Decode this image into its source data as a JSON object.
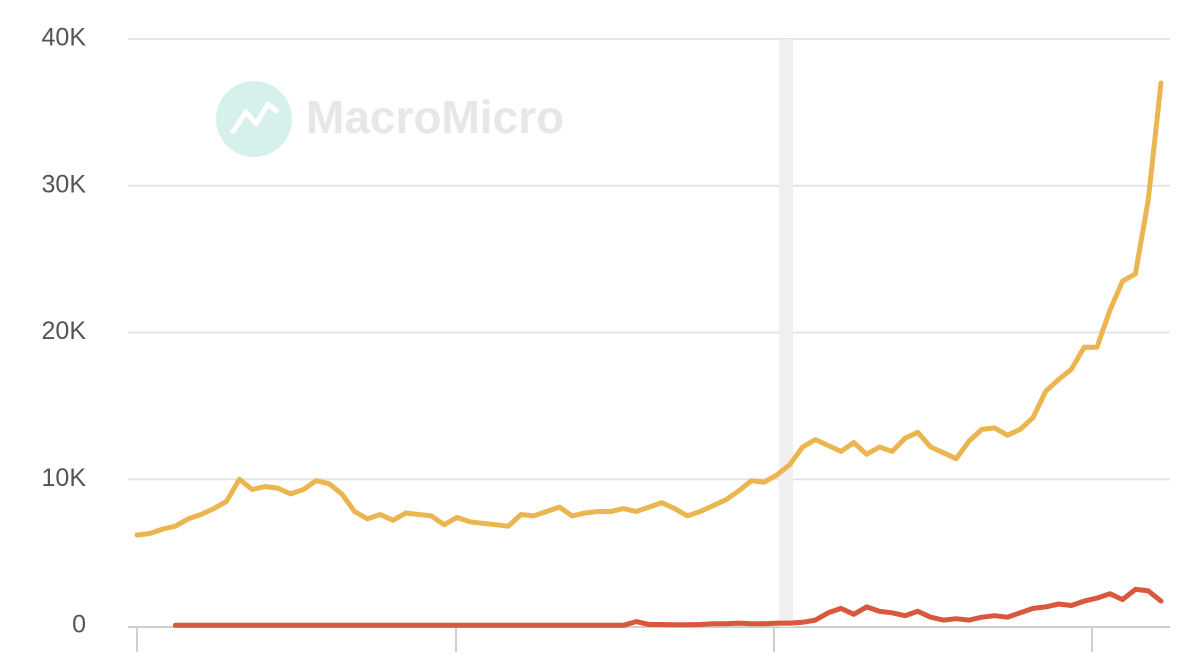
{
  "chart_data": {
    "type": "line",
    "watermark": "MacroMicro",
    "categories": [
      null,
      null,
      null,
      null,
      null,
      null,
      null,
      null,
      null,
      null,
      null,
      null,
      null,
      null,
      null,
      null,
      null,
      null,
      null,
      null,
      null,
      null,
      null,
      null,
      null,
      null,
      null,
      null,
      null,
      null,
      null,
      null,
      null,
      null,
      null,
      null,
      null,
      null,
      null,
      null,
      null,
      null,
      null,
      null,
      null,
      null,
      null,
      null,
      null,
      null,
      null,
      null,
      null,
      null,
      null,
      null,
      null,
      null,
      null,
      null,
      null,
      null,
      null,
      null,
      null,
      null,
      null,
      null,
      null,
      null,
      null,
      null,
      null,
      null,
      null,
      null,
      null,
      null,
      null,
      null,
      null
    ],
    "series": [
      {
        "color": "#ebb550",
        "values": [
          6200,
          6300,
          6600,
          6800,
          7300,
          7600,
          8000,
          8500,
          10000,
          9300,
          9500,
          9400,
          9000,
          9300,
          9900,
          9700,
          9000,
          7800,
          7300,
          7600,
          7200,
          7700,
          7600,
          7500,
          6900,
          7400,
          7100,
          7000,
          6900,
          6800,
          7600,
          7500,
          7800,
          8100,
          7500,
          7700,
          7800,
          7800,
          8000,
          7800,
          8100,
          8400,
          8000,
          7500,
          7800,
          8200,
          8600,
          9200,
          9900,
          9800,
          10300,
          11000,
          12200,
          12700,
          12300,
          11900,
          12500,
          11700,
          12200,
          11900,
          12800,
          13200,
          12200,
          11800,
          11400,
          12600,
          13400,
          13500,
          13000,
          13400,
          14200,
          16000,
          16800,
          17500,
          19000,
          19000,
          21500,
          23500,
          24000,
          29000,
          37000
        ]
      },
      {
        "color": "#d9583c",
        "values": [
          null,
          null,
          null,
          50,
          50,
          50,
          50,
          50,
          50,
          50,
          50,
          50,
          50,
          50,
          50,
          50,
          50,
          50,
          50,
          50,
          50,
          50,
          50,
          50,
          50,
          50,
          50,
          50,
          50,
          50,
          50,
          50,
          50,
          50,
          50,
          50,
          50,
          50,
          50,
          300,
          100,
          100,
          80,
          80,
          100,
          150,
          150,
          200,
          150,
          150,
          200,
          200,
          250,
          400,
          900,
          1200,
          800,
          1300,
          1000,
          900,
          700,
          1000,
          600,
          400,
          500,
          400,
          600,
          700,
          600,
          900,
          1200,
          1300,
          1500,
          1400,
          1700,
          1900,
          2200,
          1800,
          2500,
          2400,
          1700
        ]
      }
    ],
    "ylim": [
      0,
      40000
    ],
    "yticks": [
      0,
      {
        "value": 10000,
        "label": "10K"
      },
      {
        "value": 20000,
        "label": "20K"
      },
      {
        "value": 30000,
        "label": "30K"
      },
      {
        "value": 40000,
        "label": "40K"
      }
    ],
    "grid": true
  }
}
